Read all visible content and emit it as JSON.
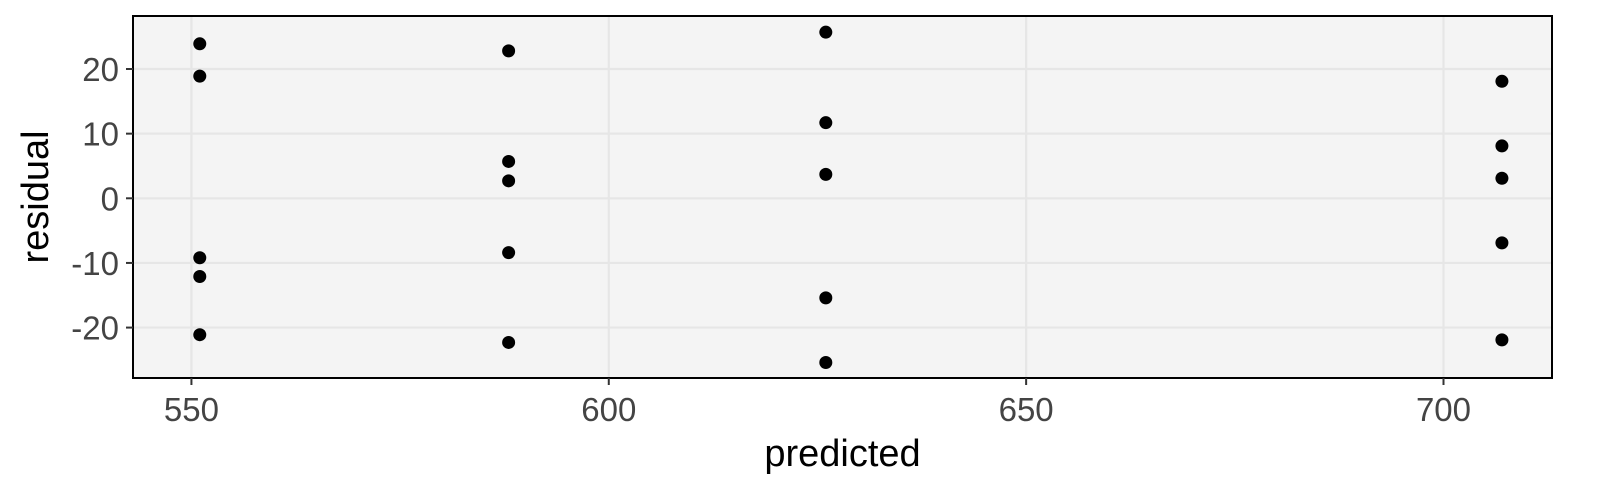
{
  "chart_data": {
    "type": "scatter",
    "title": "",
    "xlabel": "predicted",
    "ylabel": "residual",
    "xlim": [
      543,
      713
    ],
    "ylim": [
      -27.8,
      28.2
    ],
    "x_ticks": [
      550,
      600,
      650,
      700
    ],
    "y_ticks": [
      -20,
      -10,
      0,
      10,
      20
    ],
    "grid": true,
    "legend": "none",
    "colors": {
      "panel_background": "#f4f4f4",
      "grid": "#e6e6e6",
      "point": "#000000",
      "border": "#000000"
    },
    "series": [
      {
        "x": [
          551,
          551,
          551,
          551,
          551,
          588,
          588,
          588,
          588,
          588,
          626,
          626,
          626,
          626,
          626,
          707,
          707,
          707,
          707,
          707
        ],
        "y": [
          23.9,
          18.9,
          -9.2,
          -12.1,
          -21.1,
          22.8,
          5.7,
          2.7,
          -8.4,
          -22.3,
          25.7,
          11.7,
          3.7,
          -15.4,
          -25.4,
          18.1,
          8.1,
          3.1,
          -6.9,
          -21.9
        ]
      }
    ]
  }
}
